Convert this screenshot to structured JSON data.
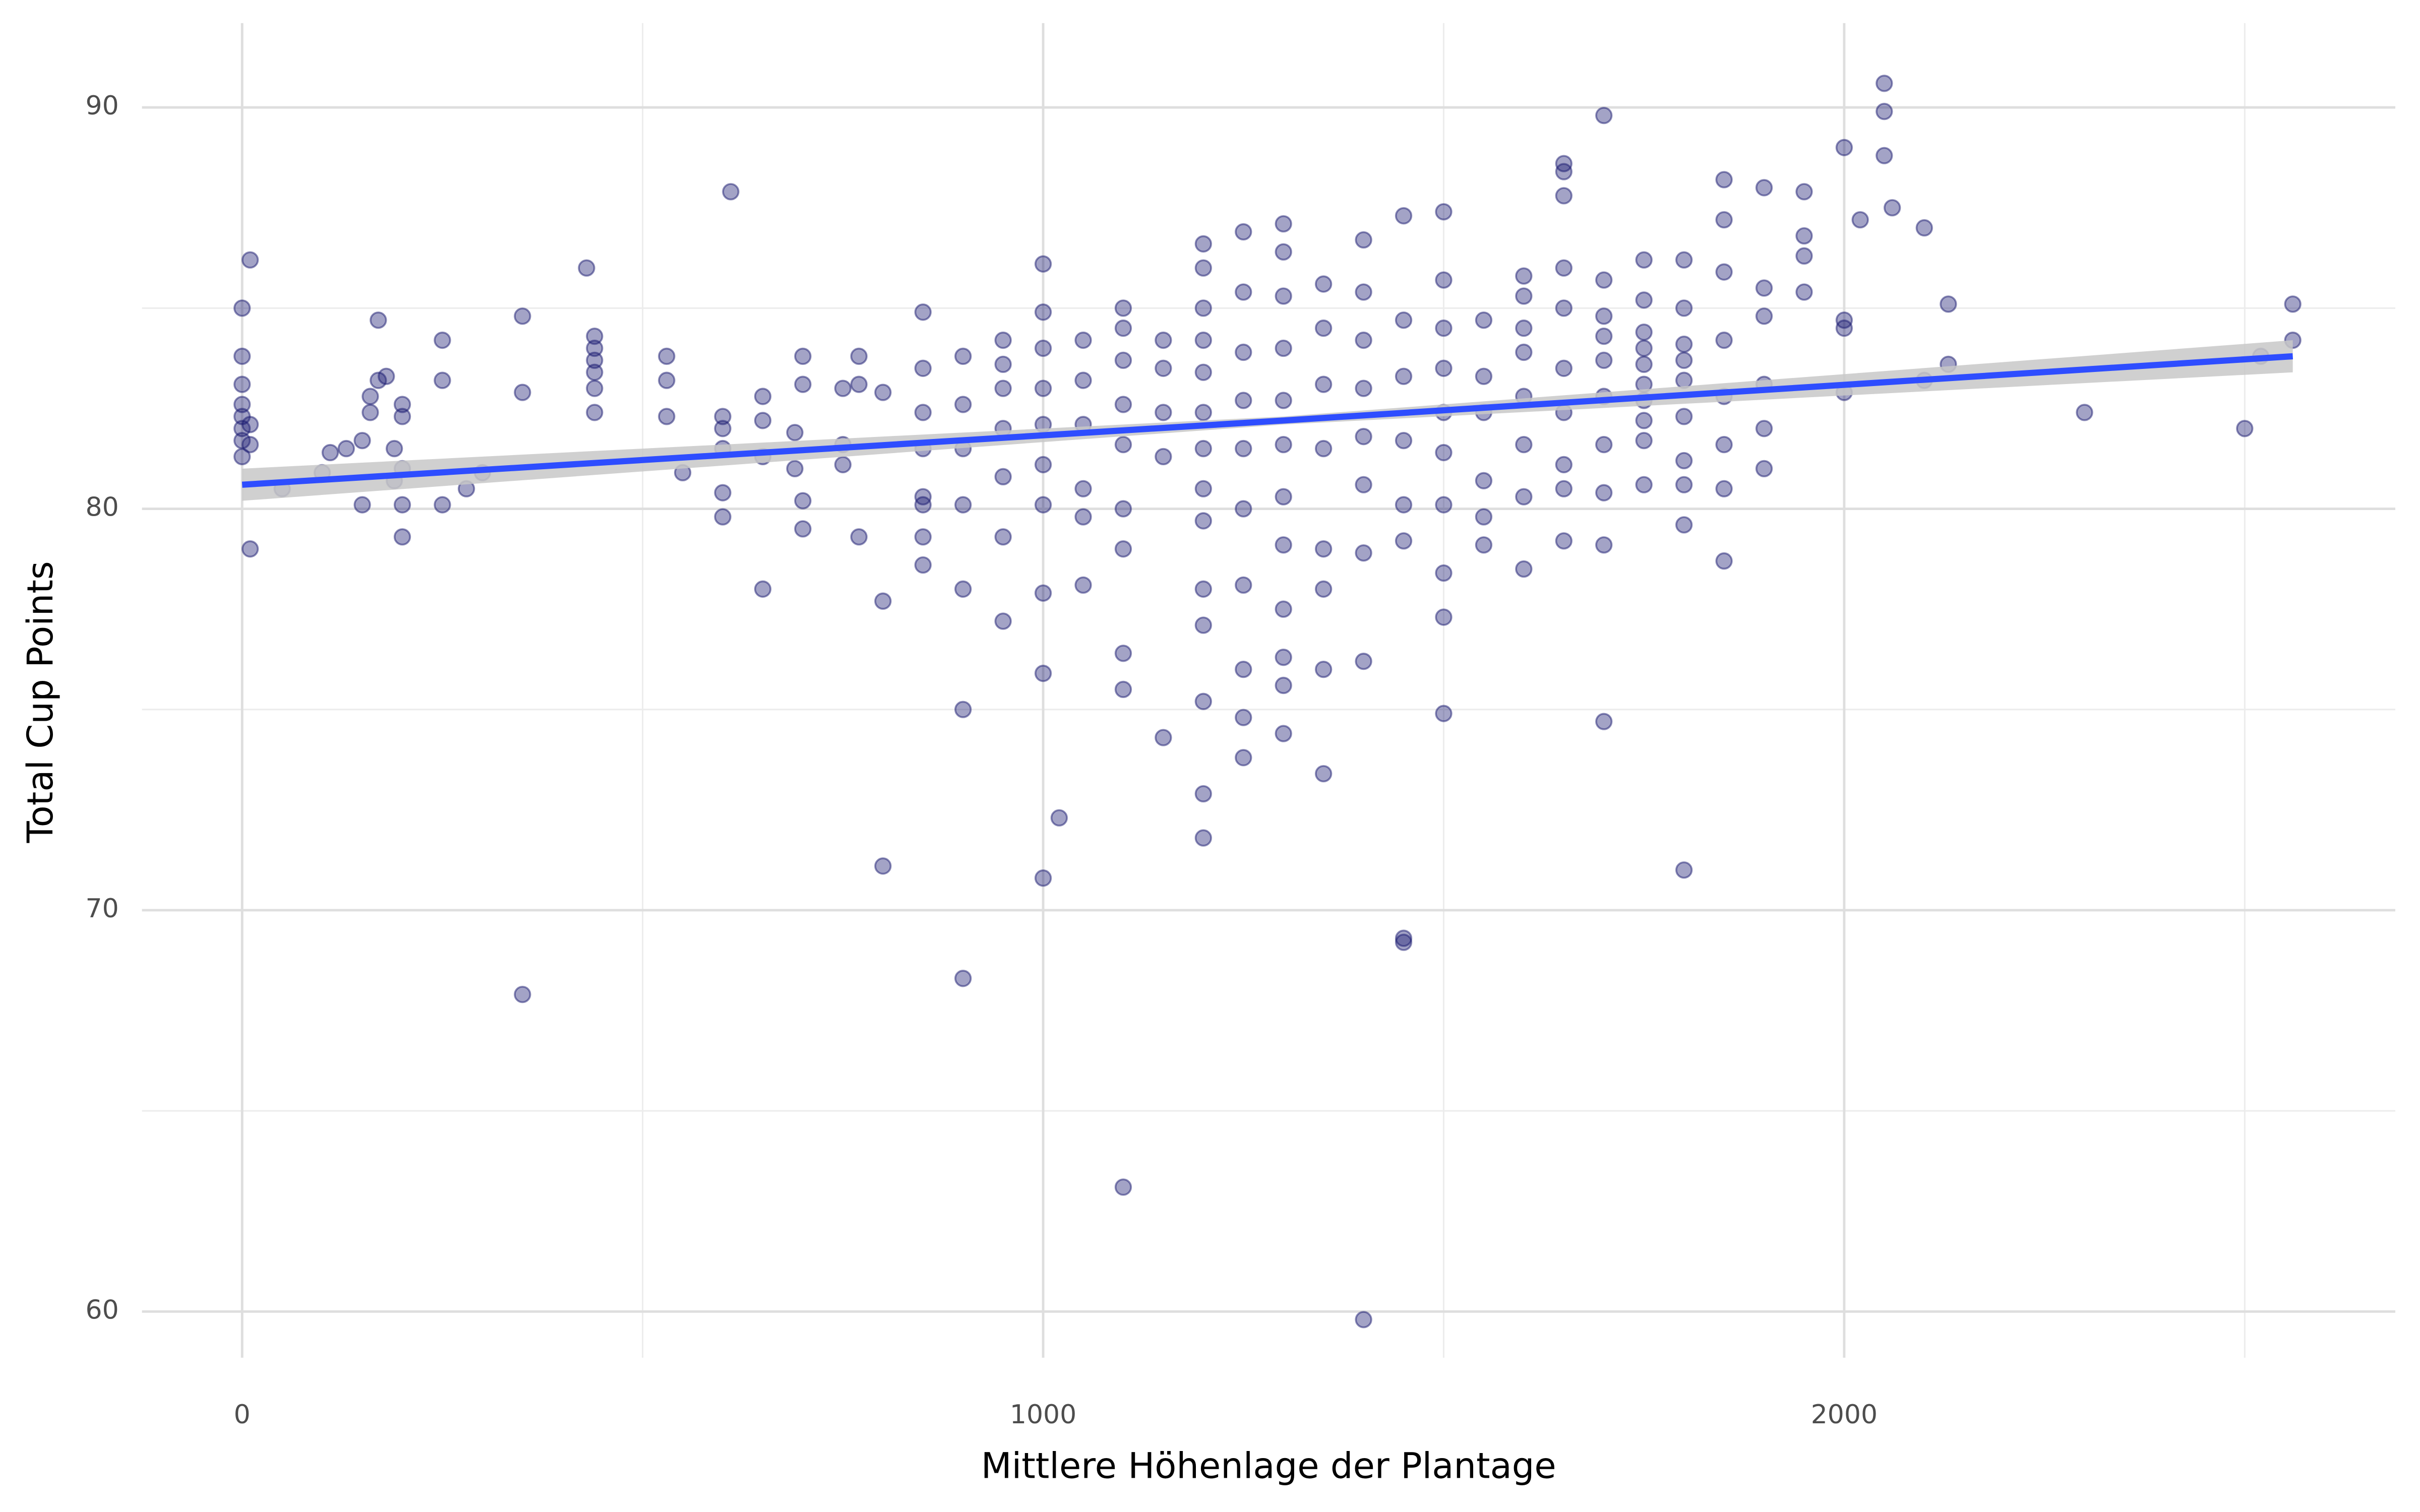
{
  "chart_data": {
    "type": "scatter",
    "x_label": "Mittlere Höhenlage der Plantage",
    "y_label": "Total Cup Points",
    "xlim": [
      -125,
      2688
    ],
    "ylim": [
      58.85,
      92.1
    ],
    "xticks": [
      0,
      1000,
      2000
    ],
    "yticks": [
      60,
      70,
      80,
      90
    ],
    "xminorticks": [
      500,
      1500,
      2500
    ],
    "yminorticks": [
      65,
      75,
      85
    ],
    "grid": true,
    "color": "#191970",
    "opacity": 0.4,
    "x": [
      0,
      0,
      0,
      0,
      0,
      0,
      0,
      0,
      10,
      10,
      10,
      10,
      50,
      100,
      110,
      130,
      150,
      150,
      160,
      160,
      170,
      170,
      180,
      190,
      190,
      200,
      200,
      200,
      200,
      200,
      250,
      250,
      250,
      280,
      300,
      350,
      350,
      350,
      430,
      440,
      440,
      440,
      440,
      440,
      440,
      530,
      530,
      530,
      550,
      600,
      600,
      600,
      600,
      600,
      610,
      650,
      650,
      650,
      650,
      690,
      690,
      700,
      700,
      700,
      700,
      750,
      750,
      750,
      770,
      770,
      770,
      800,
      800,
      800,
      850,
      850,
      850,
      850,
      850,
      850,
      850,
      850,
      900,
      900,
      900,
      900,
      900,
      900,
      900,
      950,
      950,
      950,
      950,
      950,
      950,
      950,
      1000,
      1000,
      1000,
      1000,
      1000,
      1000,
      1000,
      1000,
      1000,
      1000,
      1020,
      1050,
      1050,
      1050,
      1050,
      1050,
      1050,
      1100,
      1100,
      1100,
      1100,
      1100,
      1100,
      1100,
      1100,
      1100,
      1100,
      1150,
      1150,
      1150,
      1150,
      1150,
      1200,
      1200,
      1200,
      1200,
      1200,
      1200,
      1200,
      1200,
      1200,
      1200,
      1200,
      1200,
      1200,
      1200,
      1250,
      1250,
      1250,
      1250,
      1250,
      1250,
      1250,
      1250,
      1250,
      1250,
      1300,
      1300,
      1300,
      1300,
      1300,
      1300,
      1300,
      1300,
      1300,
      1300,
      1300,
      1300,
      1350,
      1350,
      1350,
      1350,
      1350,
      1350,
      1350,
      1350,
      1400,
      1400,
      1400,
      1400,
      1400,
      1400,
      1400,
      1400,
      1400,
      1450,
      1450,
      1450,
      1450,
      1450,
      1450,
      1450,
      1450,
      1500,
      1500,
      1500,
      1500,
      1500,
      1500,
      1500,
      1500,
      1500,
      1500,
      1550,
      1550,
      1550,
      1550,
      1550,
      1550,
      1600,
      1600,
      1600,
      1600,
      1600,
      1600,
      1600,
      1600,
      1650,
      1650,
      1650,
      1650,
      1650,
      1650,
      1650,
      1650,
      1650,
      1650,
      1700,
      1700,
      1700,
      1700,
      1700,
      1700,
      1700,
      1700,
      1700,
      1700,
      1750,
      1750,
      1750,
      1750,
      1750,
      1750,
      1750,
      1750,
      1750,
      1750,
      1800,
      1800,
      1800,
      1800,
      1800,
      1800,
      1800,
      1800,
      1800,
      1800,
      1850,
      1850,
      1850,
      1850,
      1850,
      1850,
      1850,
      1850,
      1900,
      1900,
      1900,
      1900,
      1900,
      1900,
      1950,
      1950,
      1950,
      1950,
      2000,
      2000,
      2000,
      2000,
      2020,
      2050,
      2050,
      2050,
      2060,
      2100,
      2100,
      2130,
      2130,
      2300,
      2500,
      2520,
      2560,
      2560
    ],
    "values": [
      85.0,
      83.8,
      83.1,
      82.6,
      82.3,
      82.0,
      81.7,
      81.3,
      86.2,
      79.0,
      82.1,
      81.6,
      80.5,
      80.9,
      81.4,
      81.5,
      81.7,
      80.1,
      82.4,
      82.8,
      83.2,
      84.7,
      83.3,
      81.5,
      80.7,
      82.6,
      82.3,
      81.0,
      80.1,
      79.3,
      84.2,
      83.2,
      80.1,
      80.5,
      80.9,
      84.8,
      82.9,
      67.9,
      86.0,
      84.3,
      84.0,
      83.7,
      83.4,
      83.0,
      82.4,
      83.8,
      83.2,
      82.3,
      80.9,
      82.3,
      82.0,
      81.5,
      80.4,
      79.8,
      87.9,
      82.8,
      82.2,
      81.3,
      78.0,
      81.9,
      81.0,
      83.8,
      83.1,
      80.2,
      79.5,
      83.0,
      81.6,
      81.1,
      83.8,
      83.1,
      79.3,
      77.7,
      82.9,
      71.1,
      84.9,
      83.5,
      82.4,
      81.5,
      80.1,
      79.3,
      78.6,
      80.3,
      83.8,
      82.6,
      81.5,
      80.1,
      78.0,
      75.0,
      68.3,
      84.2,
      83.0,
      82.0,
      80.8,
      79.3,
      77.2,
      83.6,
      86.1,
      84.9,
      84.0,
      83.0,
      82.1,
      81.1,
      80.1,
      77.9,
      75.9,
      70.8,
      72.3,
      84.2,
      83.2,
      82.1,
      80.5,
      79.8,
      78.1,
      85.0,
      84.5,
      83.7,
      82.6,
      81.6,
      80.0,
      79.0,
      76.4,
      75.5,
      63.1,
      84.2,
      83.5,
      82.4,
      81.3,
      74.3,
      86.6,
      86.0,
      85.0,
      84.2,
      83.4,
      82.4,
      81.5,
      80.5,
      79.7,
      78.0,
      77.1,
      75.2,
      72.9,
      71.8,
      86.9,
      85.4,
      83.9,
      82.7,
      81.5,
      80.0,
      78.1,
      76.0,
      74.8,
      73.8,
      87.1,
      86.4,
      85.3,
      84.0,
      82.7,
      81.6,
      80.3,
      79.1,
      77.5,
      76.3,
      75.6,
      74.4,
      85.6,
      84.5,
      83.1,
      81.5,
      79.0,
      78.0,
      76.0,
      73.4,
      86.7,
      85.4,
      84.2,
      83.0,
      81.8,
      80.6,
      78.9,
      76.2,
      59.8,
      87.3,
      84.7,
      83.3,
      81.7,
      80.1,
      79.2,
      69.2,
      69.3,
      87.4,
      85.7,
      84.5,
      83.5,
      82.4,
      81.4,
      80.1,
      78.4,
      77.3,
      74.9,
      84.7,
      83.3,
      82.4,
      80.7,
      79.8,
      79.1,
      85.8,
      85.3,
      83.9,
      82.8,
      81.6,
      80.3,
      78.5,
      84.5,
      86.0,
      85.0,
      83.5,
      82.4,
      81.1,
      79.2,
      88.6,
      88.4,
      87.8,
      80.5,
      85.7,
      84.8,
      83.7,
      82.8,
      81.6,
      80.4,
      79.1,
      74.7,
      89.8,
      84.3,
      86.2,
      85.2,
      84.4,
      83.6,
      82.7,
      81.7,
      80.6,
      84.0,
      83.1,
      82.2,
      86.2,
      85.0,
      84.1,
      83.2,
      82.3,
      81.2,
      80.6,
      79.6,
      71.0,
      83.7,
      88.2,
      87.2,
      85.9,
      84.2,
      82.8,
      81.6,
      80.5,
      78.7,
      88.0,
      85.5,
      84.8,
      83.1,
      82.0,
      81.0,
      87.9,
      86.8,
      86.3,
      85.4,
      89.0,
      84.7,
      84.5,
      82.9,
      87.2,
      90.6,
      89.9,
      88.8,
      87.5,
      87.0,
      83.2,
      85.1,
      83.6,
      82.4,
      82.0,
      83.8,
      85.1,
      84.2
    ],
    "fit": {
      "color": "#2e4dff",
      "band_color": "#c8c8c8",
      "x": [
        0,
        1300,
        2560
      ],
      "y": [
        80.6,
        82.2,
        83.8
      ],
      "lower": [
        80.2,
        82.1,
        83.4
      ],
      "upper": [
        81.0,
        82.3,
        84.2
      ]
    }
  }
}
